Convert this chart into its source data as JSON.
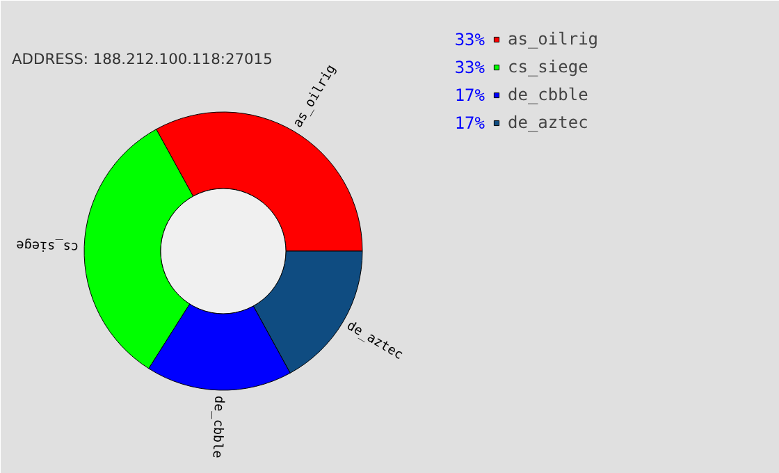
{
  "chart_data": {
    "type": "donut",
    "subtitle": "ADDRESS: 188.212.100.118:27015",
    "categories": [
      "as_oilrig",
      "cs_siege",
      "de_cbble",
      "de_aztec"
    ],
    "values": [
      33,
      33,
      17,
      17
    ],
    "value_labels": [
      "33%",
      "33%",
      "17%",
      "17%"
    ],
    "colors": [
      "#ff0000",
      "#00ff00",
      "#0000ff",
      "#0f4c81"
    ],
    "legend": "top right"
  }
}
